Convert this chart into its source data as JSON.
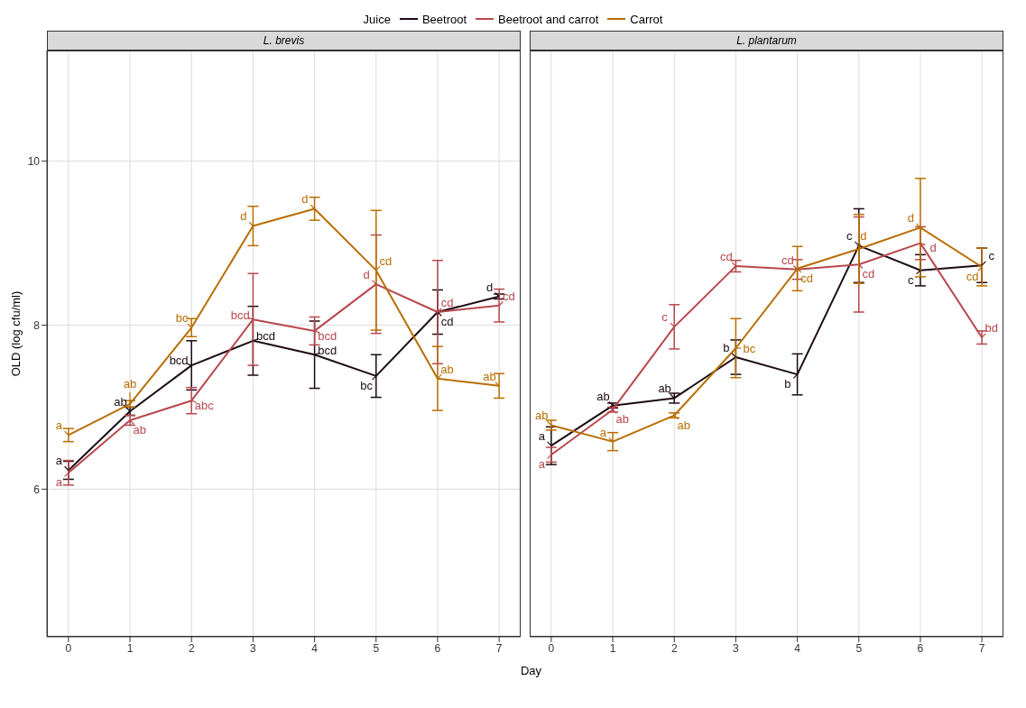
{
  "chart_data": [
    {
      "type": "line",
      "title": "L. brevis",
      "xlabel": "Day",
      "ylabel": "OLD (log cfu/ml)",
      "legend_title": "Juice",
      "legend": "top",
      "grid": true,
      "marker": "none",
      "line_style": "solid",
      "x": [
        0,
        1,
        2,
        3,
        4,
        5,
        6,
        7
      ],
      "xlim": [
        -0.35,
        7.35
      ],
      "xticks": [
        0,
        1,
        2,
        3,
        4,
        5,
        6,
        7
      ],
      "ylim": [
        4.2,
        11.35
      ],
      "yticks": [
        6,
        8,
        10
      ],
      "series": [
        {
          "name": "Beetroot",
          "color": "#1c0a14",
          "values": [
            6.23,
            6.95,
            7.51,
            7.81,
            7.64,
            7.38,
            8.16,
            8.35
          ],
          "errors": [
            0.11,
            0.05,
            0.3,
            0.42,
            0.41,
            0.26,
            0.27,
            0.03
          ],
          "value_labels": [
            "a",
            "ab",
            "bcd",
            "bcd",
            "bcd",
            "bc",
            "cd",
            "d"
          ]
        },
        {
          "name": "Beetroot and carrot",
          "color": "#b8474c",
          "values": [
            6.2,
            6.84,
            7.08,
            8.07,
            7.93,
            8.5,
            8.16,
            8.24
          ],
          "errors": [
            0.15,
            0.06,
            0.16,
            0.56,
            0.17,
            0.6,
            0.63,
            0.2
          ],
          "value_labels": [
            "a",
            "ab",
            "abc",
            "bcd",
            "bcd",
            "d",
            "cd",
            "cd"
          ]
        },
        {
          "name": "Carrot",
          "color": "#b86e00",
          "values": [
            6.66,
            7.04,
            7.97,
            9.21,
            9.42,
            8.67,
            7.35,
            7.26
          ],
          "errors": [
            0.08,
            0.04,
            0.11,
            0.24,
            0.14,
            0.73,
            0.39,
            0.15
          ],
          "value_labels": [
            "a",
            "ab",
            "bc",
            "d",
            "d",
            "cd",
            "ab",
            "ab"
          ]
        }
      ]
    },
    {
      "type": "line",
      "title": "L. plantarum",
      "grid": true,
      "marker": "none",
      "line_style": "solid",
      "tick_labels": "x",
      "x": [
        0,
        1,
        2,
        3,
        4,
        5,
        6,
        7
      ],
      "xlim": [
        -0.35,
        7.35
      ],
      "xticks": [
        0,
        1,
        2,
        3,
        4,
        5,
        6,
        7
      ],
      "ylim": [
        4.2,
        11.35
      ],
      "yticks": [
        6,
        8,
        10
      ],
      "series": [
        {
          "color": "#1c0a14",
          "values": [
            6.53,
            7.02,
            7.11,
            7.61,
            7.4,
            8.97,
            8.67,
            8.73
          ],
          "errors": [
            0.23,
            0.03,
            0.06,
            0.21,
            0.25,
            0.45,
            0.19,
            0.21
          ],
          "value_labels": [
            "a",
            "ab",
            "ab",
            "b",
            "b",
            "c",
            "c",
            "c"
          ]
        },
        {
          "color": "#b8474c",
          "values": [
            6.42,
            6.97,
            7.98,
            8.72,
            8.68,
            8.74,
            9.0,
            7.85
          ],
          "errors": [
            0.09,
            0.03,
            0.27,
            0.07,
            0.12,
            0.58,
            0.2,
            0.08
          ],
          "value_labels": [
            "a",
            "ab",
            "c",
            "cd",
            "cd",
            "cd",
            "d",
            "bd"
          ]
        },
        {
          "color": "#b86e00",
          "values": [
            6.78,
            6.58,
            6.9,
            7.72,
            8.69,
            8.93,
            9.19,
            8.71
          ],
          "errors": [
            0.06,
            0.11,
            0.03,
            0.36,
            0.27,
            0.42,
            0.6,
            0.23
          ],
          "value_labels": [
            "ab",
            "a",
            "ab",
            "bc",
            "cd",
            "d",
            "d",
            "cd"
          ]
        }
      ]
    }
  ]
}
